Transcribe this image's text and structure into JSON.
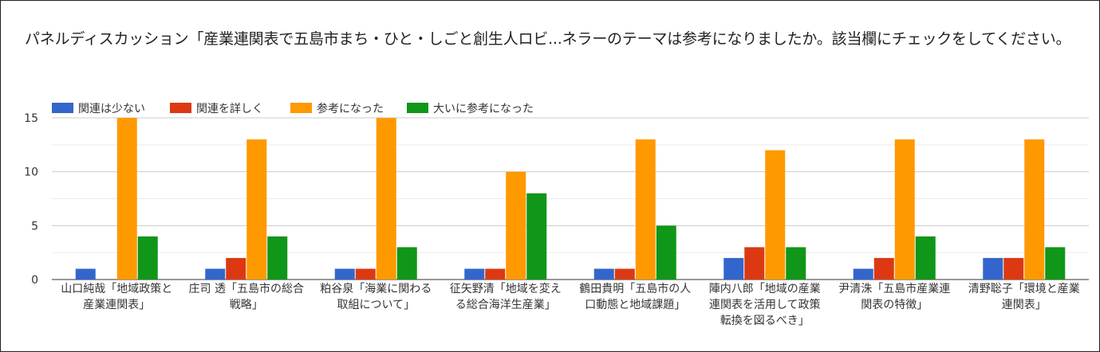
{
  "title": "パネルディスカッション「産業連関表で五島市まち・ひと・しごと創生人ロビ...ネラーのテーマは参考になりましたか。該当欄にチェックをしてください。",
  "chart_data": {
    "type": "bar",
    "title": "パネルディスカッション「産業連関表で五島市まち・ひと・しごと創生人ロビ...ネラーのテーマは参考になりましたか。該当欄にチェックをしてください。",
    "xlabel": "",
    "ylabel": "",
    "ylim": [
      0,
      15
    ],
    "yticks": [
      0,
      5,
      10,
      15
    ],
    "grid": true,
    "legend_position": "top-left",
    "categories": [
      [
        "山口純哉「地域政策と",
        "産業連関表」"
      ],
      [
        "庄司 透「五島市の総合",
        "戦略」"
      ],
      [
        "粕谷泉「海業に関わる",
        "取組について」"
      ],
      [
        "征矢野清「地域を変え",
        "る総合海洋生産業」"
      ],
      [
        "鶴田貴明「五島市の人",
        "口動態と地域課題」"
      ],
      [
        "陣内八郎「地域の産業",
        "連関表を活用して政策",
        "転換を図るべき」"
      ],
      [
        "尹清洙「五島市産業連",
        "関表の特徴」"
      ],
      [
        "清野聡子「環境と産業",
        "連関表」"
      ]
    ],
    "series": [
      {
        "name": "関連は少ない",
        "color": "#3366cc",
        "values": [
          1,
          1,
          1,
          1,
          1,
          2,
          1,
          2
        ]
      },
      {
        "name": "関連を詳しく",
        "color": "#dc3912",
        "values": [
          0,
          2,
          1,
          1,
          1,
          3,
          2,
          2
        ]
      },
      {
        "name": "参考になった",
        "color": "#ff9900",
        "values": [
          15,
          13,
          15,
          10,
          13,
          12,
          13,
          13
        ]
      },
      {
        "name": "大いに参考になった",
        "color": "#109618",
        "values": [
          4,
          4,
          3,
          8,
          5,
          3,
          4,
          3
        ]
      }
    ]
  }
}
